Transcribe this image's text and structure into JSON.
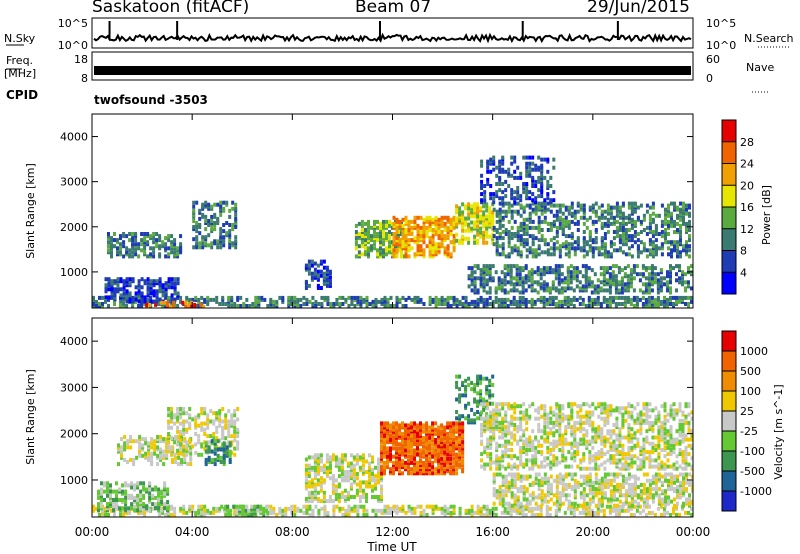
{
  "header": {
    "station": "Saskatoon (fitACF)",
    "beam": "Beam 07",
    "date": "29/Jun/2015"
  },
  "noise_panel": {
    "left_label": "N.Sky",
    "right_label": "N.Search",
    "left_ticks": [
      "10^5",
      "10^0"
    ],
    "right_ticks": [
      "10^5",
      "10^0"
    ]
  },
  "freq_panel": {
    "left_label_1": "Freq.",
    "left_label_2": "[MHz]",
    "right_label": "Nave",
    "left_ticks": [
      "18",
      "8"
    ],
    "right_ticks": [
      "60",
      "0"
    ]
  },
  "cpid": {
    "label": "CPID",
    "value": "twofsound -3503"
  },
  "x_axis": {
    "label": "Time UT",
    "ticks": [
      "00:00",
      "04:00",
      "08:00",
      "12:00",
      "16:00",
      "20:00",
      "00:00"
    ]
  },
  "chart_data": [
    {
      "type": "heatmap",
      "quantity": "power",
      "ylabel": "Slant Range [km]",
      "yticks": [
        "1000",
        "2000",
        "3000",
        "4000"
      ],
      "ylim": [
        200,
        4500
      ],
      "xlim_hours": [
        0,
        24
      ],
      "colorbar": {
        "label": "Power [dB]",
        "ticks": [
          "4",
          "8",
          "12",
          "16",
          "20",
          "24",
          "28"
        ],
        "colors": [
          "#0000ff",
          "#1e3cb4",
          "#3a7a70",
          "#5aaa40",
          "#e6e600",
          "#f0a000",
          "#f06400",
          "#e60000"
        ]
      },
      "regions": [
        {
          "t": [
            0.0,
            24.0
          ],
          "r": [
            200,
            420
          ],
          "level": 2,
          "density": 0.5
        },
        {
          "t": [
            0.5,
            3.5
          ],
          "r": [
            300,
            800
          ],
          "level": 1,
          "density": 0.55
        },
        {
          "t": [
            0.6,
            3.6
          ],
          "r": [
            1300,
            1800
          ],
          "level": 2,
          "density": 0.45
        },
        {
          "t": [
            4.0,
            5.8
          ],
          "r": [
            1500,
            2500
          ],
          "level": 2,
          "density": 0.4
        },
        {
          "t": [
            2.0,
            4.5
          ],
          "r": [
            180,
            300
          ],
          "level": 6,
          "density": 0.5
        },
        {
          "t": [
            8.5,
            9.5
          ],
          "r": [
            600,
            1200
          ],
          "level": 1,
          "density": 0.35
        },
        {
          "t": [
            10.5,
            12.5
          ],
          "r": [
            1300,
            2100
          ],
          "level": 3,
          "density": 0.55
        },
        {
          "t": [
            12.0,
            14.5
          ],
          "r": [
            1300,
            2200
          ],
          "level": 5,
          "density": 0.6
        },
        {
          "t": [
            14.5,
            16.0
          ],
          "r": [
            1600,
            2500
          ],
          "level": 4,
          "density": 0.55
        },
        {
          "t": [
            16.0,
            23.9
          ],
          "r": [
            1300,
            2500
          ],
          "level": 2,
          "density": 0.4
        },
        {
          "t": [
            15.0,
            24.0
          ],
          "r": [
            500,
            1100
          ],
          "level": 2,
          "density": 0.45
        },
        {
          "t": [
            15.5,
            18.5
          ],
          "r": [
            2500,
            3500
          ],
          "level": 1,
          "density": 0.3
        }
      ]
    },
    {
      "type": "heatmap",
      "quantity": "velocity",
      "ylabel": "Slant Range [km]",
      "yticks": [
        "1000",
        "2000",
        "3000",
        "4000"
      ],
      "ylim": [
        200,
        4500
      ],
      "xlim_hours": [
        0,
        24
      ],
      "colorbar": {
        "label": "Velocity [m s^-1]",
        "ticks": [
          "1000",
          "500",
          "100",
          "25",
          "-25",
          "-100",
          "-500",
          "-1000"
        ],
        "colors": [
          "#1e28c8",
          "#1e6496",
          "#3c9650",
          "#64c832",
          "#c8c8c8",
          "#f0c800",
          "#f08c00",
          "#f06400",
          "#e60000"
        ]
      },
      "regions": [
        {
          "t": [
            0.0,
            24.0
          ],
          "r": [
            200,
            420
          ],
          "level": 4,
          "density": 0.45
        },
        {
          "t": [
            0.2,
            3.0
          ],
          "r": [
            300,
            900
          ],
          "level": 3,
          "density": 0.45
        },
        {
          "t": [
            1.0,
            4.0
          ],
          "r": [
            1300,
            1900
          ],
          "level": 4,
          "density": 0.4
        },
        {
          "t": [
            3.0,
            5.8
          ],
          "r": [
            1500,
            2500
          ],
          "level": 4,
          "density": 0.35
        },
        {
          "t": [
            4.5,
            5.5
          ],
          "r": [
            1300,
            1800
          ],
          "level": 2,
          "density": 0.5
        },
        {
          "t": [
            5.0,
            7.0
          ],
          "r": [
            200,
            400
          ],
          "level": 3,
          "density": 0.6
        },
        {
          "t": [
            8.5,
            11.5
          ],
          "r": [
            500,
            1500
          ],
          "level": 4,
          "density": 0.45
        },
        {
          "t": [
            11.5,
            14.8
          ],
          "r": [
            1100,
            2200
          ],
          "level": 7,
          "density": 0.75
        },
        {
          "t": [
            14.5,
            16.0
          ],
          "r": [
            2200,
            3200
          ],
          "level": 2,
          "density": 0.35
        },
        {
          "t": [
            15.5,
            24.0
          ],
          "r": [
            1200,
            2600
          ],
          "level": 4,
          "density": 0.45
        },
        {
          "t": [
            16.0,
            24.0
          ],
          "r": [
            400,
            1100
          ],
          "level": 4,
          "density": 0.5
        }
      ]
    }
  ],
  "colors": {
    "axis": "#000000",
    "background": "#ffffff"
  }
}
